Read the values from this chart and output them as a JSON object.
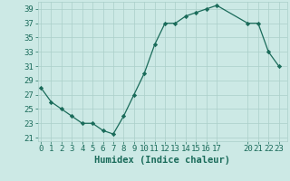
{
  "x": [
    0,
    1,
    2,
    3,
    4,
    5,
    6,
    7,
    8,
    9,
    10,
    11,
    12,
    13,
    14,
    15,
    16,
    17,
    20,
    21,
    22,
    23
  ],
  "y": [
    28,
    26,
    25,
    24,
    23,
    23,
    22,
    21.5,
    24,
    27,
    30,
    34,
    37,
    37,
    38,
    38.5,
    39,
    39.5,
    37,
    37,
    33,
    31
  ],
  "line_color": "#1a6b5a",
  "marker": "D",
  "marker_size": 2.2,
  "bg_color": "#cce9e5",
  "grid_color": "#aacfc9",
  "xlabel": "Humidex (Indice chaleur)",
  "xlabel_fontsize": 7.5,
  "tick_fontsize": 6.5,
  "yticks": [
    21,
    23,
    25,
    27,
    29,
    31,
    33,
    35,
    37,
    39
  ],
  "xtick_labels": [
    "0",
    "1",
    "2",
    "3",
    "4",
    "5",
    "6",
    "7",
    "8",
    "9",
    "1011",
    "1213",
    "1415",
    "1617",
    "",
    "20",
    "2122",
    "23"
  ],
  "xticks_pos": [
    0,
    1,
    2,
    3,
    4,
    5,
    6,
    7,
    8,
    9,
    10,
    12,
    14,
    16,
    18,
    20,
    21,
    23
  ],
  "xlim": [
    -0.3,
    23.8
  ],
  "ylim": [
    20.5,
    40.0
  ]
}
